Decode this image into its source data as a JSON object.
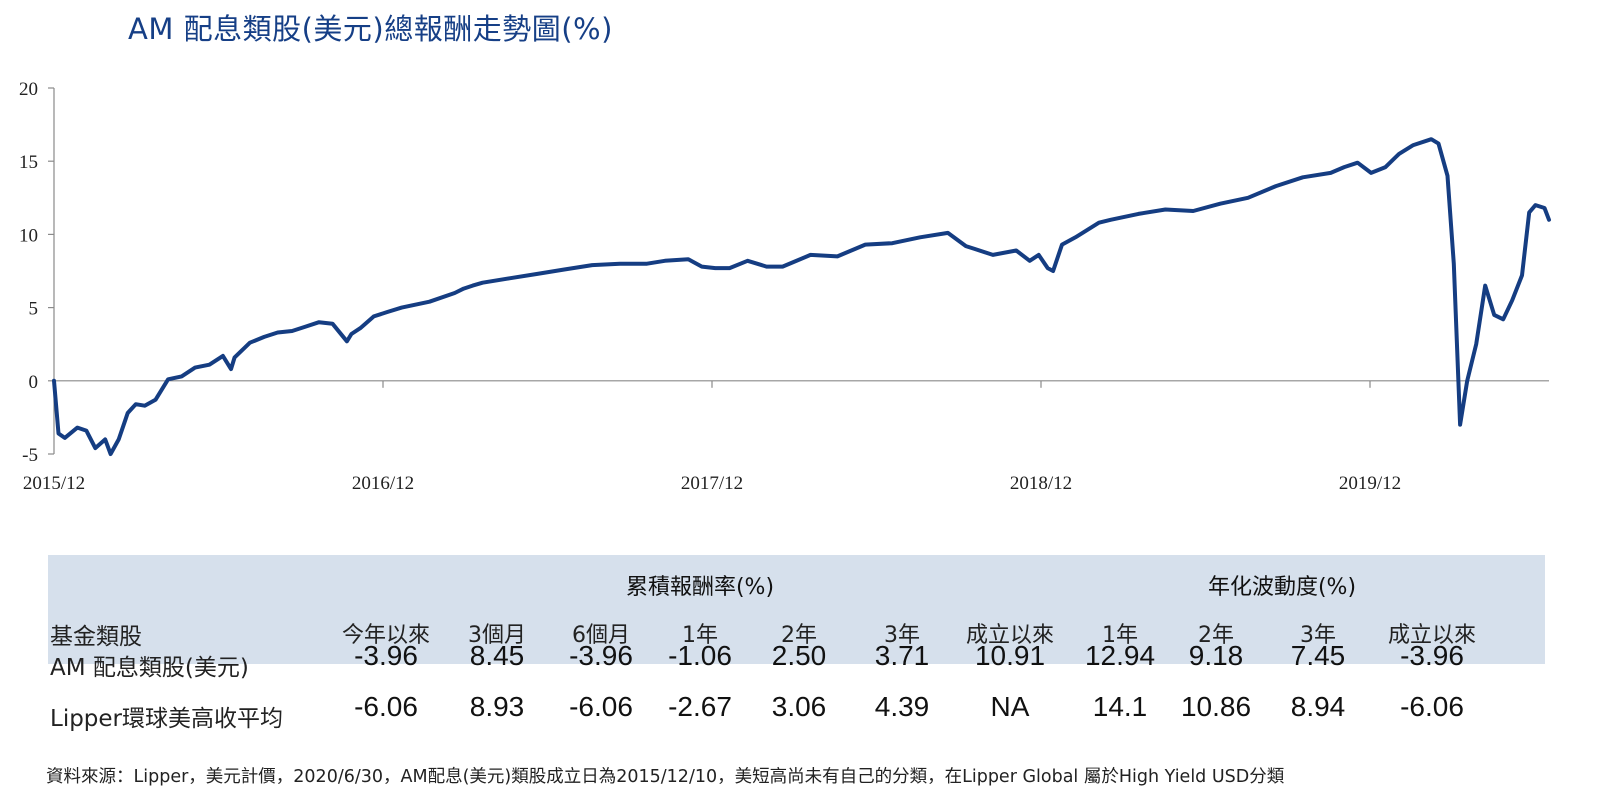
{
  "title": "AM 配息類股(美元)總報酬走勢圖(%)",
  "chart_data": {
    "type": "line",
    "title": "AM 配息類股(美元)總報酬走勢圖(%)",
    "xlabel": "",
    "ylabel": "",
    "ylim": [
      -5,
      20
    ],
    "yticks": [
      "20",
      "15",
      "10",
      "5",
      "0",
      "-5"
    ],
    "xticks": [
      "2015/12",
      "2016/12",
      "2017/12",
      "2018/12",
      "2019/12"
    ],
    "xlim": [
      "2015-12-10",
      "2020-06-30"
    ],
    "grid": false,
    "color": "#153d82",
    "series": [
      {
        "name": "",
        "x": [
          "2015-12-10",
          "2015-12-15",
          "2015-12-22",
          "2016-01-05",
          "2016-01-15",
          "2016-01-25",
          "2016-02-05",
          "2016-02-11",
          "2016-02-20",
          "2016-03-01",
          "2016-03-10",
          "2016-03-20",
          "2016-04-01",
          "2016-04-15",
          "2016-04-30",
          "2016-05-15",
          "2016-05-31",
          "2016-06-15",
          "2016-06-24",
          "2016-06-28",
          "2016-07-15",
          "2016-07-31",
          "2016-08-15",
          "2016-08-31",
          "2016-09-15",
          "2016-09-30",
          "2016-10-15",
          "2016-10-31",
          "2016-11-05",
          "2016-11-15",
          "2016-11-30",
          "2016-12-15",
          "2016-12-31",
          "2017-01-31",
          "2017-02-28",
          "2017-03-10",
          "2017-03-20",
          "2017-03-31",
          "2017-04-30",
          "2017-05-31",
          "2017-06-30",
          "2017-07-31",
          "2017-08-31",
          "2017-09-30",
          "2017-10-20",
          "2017-11-15",
          "2017-11-30",
          "2017-12-15",
          "2017-12-31",
          "2018-01-20",
          "2018-02-10",
          "2018-02-28",
          "2018-03-31",
          "2018-04-30",
          "2018-05-31",
          "2018-06-30",
          "2018-07-31",
          "2018-08-31",
          "2018-09-20",
          "2018-09-30",
          "2018-10-20",
          "2018-11-15",
          "2018-11-30",
          "2018-12-10",
          "2018-12-20",
          "2018-12-26",
          "2019-01-05",
          "2019-01-20",
          "2019-02-15",
          "2019-02-28",
          "2019-03-31",
          "2019-04-30",
          "2019-05-31",
          "2019-06-30",
          "2019-07-31",
          "2019-08-31",
          "2019-09-30",
          "2019-10-31",
          "2019-11-15",
          "2019-11-30",
          "2019-12-15",
          "2019-12-31",
          "2020-01-15",
          "2020-01-31",
          "2020-02-20",
          "2020-02-28",
          "2020-03-09",
          "2020-03-16",
          "2020-03-23",
          "2020-03-31",
          "2020-04-10",
          "2020-04-20",
          "2020-04-30",
          "2020-05-10",
          "2020-05-20",
          "2020-05-31",
          "2020-06-08",
          "2020-06-15",
          "2020-06-25",
          "2020-06-30"
        ],
        "values": [
          0.0,
          -3.6,
          -3.9,
          -3.2,
          -3.4,
          -4.6,
          -4.0,
          -5.0,
          -4.0,
          -2.2,
          -1.6,
          -1.7,
          -1.3,
          0.1,
          0.3,
          0.9,
          1.1,
          1.7,
          0.8,
          1.6,
          2.6,
          3.0,
          3.3,
          3.4,
          3.7,
          4.0,
          3.9,
          2.7,
          3.2,
          3.6,
          4.4,
          4.7,
          5.0,
          5.4,
          6.0,
          6.3,
          6.5,
          6.7,
          7.0,
          7.3,
          7.6,
          7.9,
          8.0,
          8.0,
          8.2,
          8.3,
          7.8,
          7.7,
          7.7,
          8.2,
          7.8,
          7.8,
          8.6,
          8.5,
          9.3,
          9.4,
          9.8,
          10.1,
          9.2,
          9.0,
          8.6,
          8.9,
          8.2,
          8.6,
          7.7,
          7.5,
          9.3,
          9.8,
          10.8,
          11.0,
          11.4,
          11.7,
          11.6,
          12.1,
          12.5,
          13.3,
          13.9,
          14.2,
          14.6,
          14.9,
          14.2,
          14.6,
          15.5,
          16.1,
          16.5,
          16.2,
          14.0,
          8.0,
          -3.0,
          0.0,
          2.5,
          6.5,
          4.5,
          4.2,
          5.5,
          7.2,
          11.5,
          12.0,
          11.8,
          11.0
        ]
      }
    ]
  },
  "table": {
    "group_headers": [
      "累積報酬率(%)",
      "年化波動度(%)"
    ],
    "column_headers": [
      "基金類股",
      "今年以來",
      "3個月",
      "6個月",
      "1年",
      "2年",
      "3年",
      "成立以來",
      "1年",
      "2年",
      "3年",
      "成立以來"
    ],
    "rows": [
      {
        "label": "AM 配息類股(美元)",
        "values": [
          "-3.96",
          "8.45",
          "-3.96",
          "-1.06",
          "2.50",
          "3.71",
          "10.91",
          "12.94",
          "9.18",
          "7.45",
          "-3.96"
        ]
      },
      {
        "label": "Lipper環球美高收平均",
        "values": [
          "-6.06",
          "8.93",
          "-6.06",
          "-2.67",
          "3.06",
          "4.39",
          "NA",
          "14.1",
          "10.86",
          "8.94",
          "-6.06"
        ]
      }
    ]
  },
  "source_note": "資料來源：Lipper，美元計價，2020/6/30，AM配息(美元)類股成立日為2015/12/10，美短高尚未有自己的分類，在Lipper Global 屬於High Yield USD分類"
}
